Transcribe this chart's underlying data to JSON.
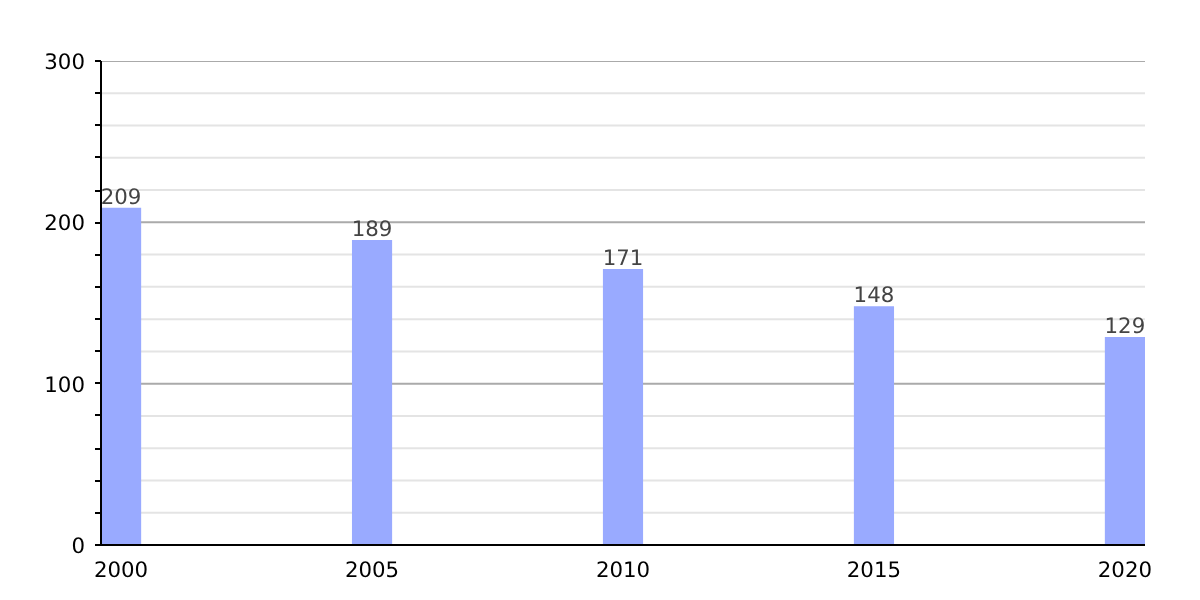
{
  "chart_data": {
    "type": "bar",
    "x": [
      2000,
      2005,
      2010,
      2015,
      2020
    ],
    "values": [
      209,
      189,
      171,
      148,
      129
    ],
    "color": "#99aaff",
    "data_labels": true,
    "xlim": [
      1999.6,
      2020.4
    ],
    "xticks": [
      2000,
      2005,
      2010,
      2015,
      2020
    ],
    "ylim": [
      0,
      300
    ],
    "yticks": [
      0,
      {
        "value": 20,
        "label": null
      },
      {
        "value": 40,
        "label": null
      },
      {
        "value": 60,
        "label": null
      },
      {
        "value": 80,
        "label": null
      },
      100,
      {
        "value": 120,
        "label": null
      },
      {
        "value": 140,
        "label": null
      },
      {
        "value": 160,
        "label": null
      },
      {
        "value": 180,
        "label": null
      },
      200,
      {
        "value": 220,
        "label": null
      },
      {
        "value": 240,
        "label": null
      },
      {
        "value": 260,
        "label": null
      },
      {
        "value": 280,
        "label": null
      },
      300
    ],
    "grid": "y"
  }
}
